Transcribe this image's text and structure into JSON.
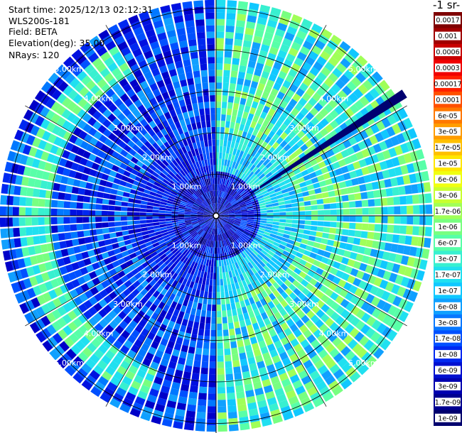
{
  "info": {
    "start_time": "Start time: 2025/12/13 02:12:31",
    "instrument": "WLS200s-181",
    "field": "Field: BETA",
    "elevation": "Elevation(deg): 35.00",
    "nrays": "NRays: 120"
  },
  "colorbar": {
    "title": "-1 sr-",
    "labels": [
      "0.0017",
      "0.001",
      "0.0006",
      "0.0003",
      "0.00017",
      "0.0001",
      "6e-05",
      "3e-05",
      "1.7e-05",
      "1e-05",
      "6e-06",
      "3e-06",
      "1.7e-06",
      "1e-06",
      "6e-07",
      "3e-07",
      "1.7e-07",
      "1e-07",
      "6e-08",
      "3e-08",
      "1.7e-08",
      "1e-08",
      "6e-09",
      "3e-09",
      "1.7e-09",
      "1e-09"
    ],
    "colors": [
      "#7f0000",
      "#a00000",
      "#c80000",
      "#f00000",
      "#ff2000",
      "#ff5000",
      "#ff7800",
      "#ff9c00",
      "#ffc000",
      "#ffe600",
      "#f0ff10",
      "#c8ff30",
      "#a0ff58",
      "#78ff80",
      "#58ffa8",
      "#38f0d0",
      "#20e0f0",
      "#10c8ff",
      "#10a0ff",
      "#0878ff",
      "#0050ff",
      "#0028f0",
      "#0010d0",
      "#0000b0",
      "#000090",
      "#00006e"
    ]
  },
  "chart_data": {
    "type": "heatmap",
    "title": "",
    "field": "BETA",
    "instrument": "WLS200s-181",
    "start_time": "2025/12/13 02:12:31",
    "elevation_deg": 35.0,
    "n_rays": 120,
    "max_range_km": 5.2,
    "range_rings_km": [
      1.0,
      2.0,
      3.0,
      4.0,
      5.0
    ],
    "ring_labels": [
      "1.00km",
      "2.00km",
      "3.00km",
      "4.00km",
      "5.00km"
    ],
    "azimuth_spokes_deg": [
      0,
      30,
      60,
      90,
      120,
      150,
      180,
      210,
      240,
      270,
      300,
      330
    ],
    "color_scale": "log",
    "value_range": [
      1e-09,
      0.0017
    ],
    "regions": [
      {
        "sector": "west (180-360 deg azimuth)",
        "dominant_value": "1e-08 to 3e-08",
        "colors": "blue"
      },
      {
        "sector": "east (0-180 deg azimuth)",
        "dominant_value": "1e-07 to 6e-07",
        "colors": "cyan/green"
      },
      {
        "sector": "near center (< 1 km)",
        "dominant_value": "1e-09 to 1e-08",
        "colors": "dark blue"
      },
      {
        "sector": "west ring band ~4-5 km",
        "dominant_value": "3e-07 to 1e-06",
        "colors": "cyan/green"
      }
    ],
    "beam_blockage_azimuth_deg": 57
  }
}
